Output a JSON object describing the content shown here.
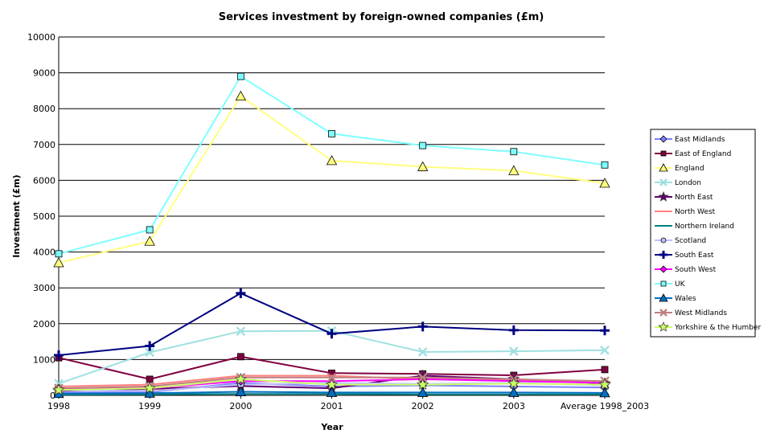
{
  "chart_data": {
    "type": "line",
    "title": "Services investment by foreign-owned companies (£m)",
    "xlabel": "Year",
    "ylabel": "Investment (£m)",
    "categories": [
      "1998",
      "1999",
      "2000",
      "2001",
      "2002",
      "2003",
      "Average 1998_2003"
    ],
    "ylim": [
      0,
      10000
    ],
    "yticks": [
      0,
      1000,
      2000,
      3000,
      4000,
      5000,
      6000,
      7000,
      8000,
      9000,
      10000
    ],
    "grid": true,
    "legend": "right",
    "series": [
      {
        "name": "East Midlands",
        "color": "#8080ff",
        "marker": "diamond",
        "values": [
          80,
          90,
          350,
          250,
          280,
          250,
          220
        ]
      },
      {
        "name": "East of England",
        "color": "#800040",
        "marker": "square",
        "values": [
          1050,
          450,
          1080,
          620,
          600,
          560,
          720
        ]
      },
      {
        "name": "England",
        "color": "#ffff80",
        "marker": "triangle",
        "values": [
          3700,
          4300,
          8350,
          6550,
          6380,
          6270,
          5920
        ]
      },
      {
        "name": "London",
        "color": "#a0e0e0",
        "marker": "x",
        "values": [
          330,
          1200,
          1790,
          1800,
          1210,
          1230,
          1260
        ]
      },
      {
        "name": "North East",
        "color": "#600070",
        "marker": "star",
        "values": [
          130,
          180,
          260,
          200,
          550,
          450,
          330
        ]
      },
      {
        "name": "North West",
        "color": "#ff8080",
        "marker": "dash",
        "values": [
          250,
          300,
          550,
          550,
          450,
          420,
          400
        ]
      },
      {
        "name": "Northern Ireland",
        "color": "#008080",
        "marker": "dash",
        "values": [
          20,
          30,
          40,
          40,
          30,
          30,
          30
        ]
      },
      {
        "name": "Scotland",
        "color": "#c0c0ff",
        "marker": "circle",
        "values": [
          150,
          120,
          300,
          350,
          320,
          350,
          280
        ]
      },
      {
        "name": "South East",
        "color": "#000080",
        "marker": "plus",
        "values": [
          1120,
          1380,
          2850,
          1720,
          1920,
          1820,
          1810
        ]
      },
      {
        "name": "South West",
        "color": "#ff00ff",
        "marker": "diamond",
        "values": [
          200,
          200,
          400,
          400,
          450,
          400,
          350
        ]
      },
      {
        "name": "UK",
        "color": "#80ffff",
        "marker": "square",
        "values": [
          3950,
          4620,
          8900,
          7300,
          6970,
          6800,
          6430
        ]
      },
      {
        "name": "Wales",
        "color": "#0070c0",
        "marker": "triangle",
        "values": [
          50,
          60,
          100,
          80,
          80,
          80,
          70
        ]
      },
      {
        "name": "West Midlands",
        "color": "#c08080",
        "marker": "x",
        "values": [
          200,
          250,
          500,
          500,
          500,
          450,
          400
        ]
      },
      {
        "name": "Yorkshire & the Humber",
        "color": "#ccff66",
        "marker": "star",
        "values": [
          150,
          200,
          450,
          300,
          300,
          330,
          300
        ]
      }
    ]
  }
}
